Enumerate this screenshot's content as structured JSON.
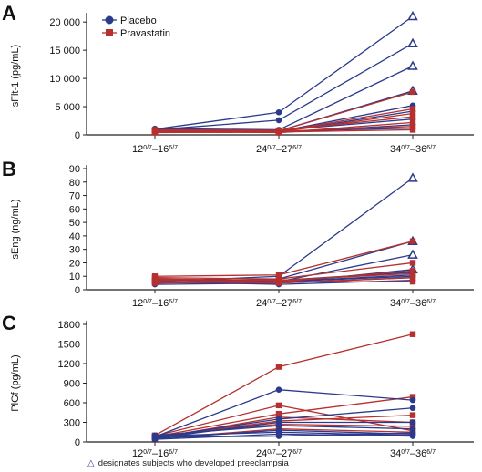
{
  "figure": {
    "footnote": "designates subjects who developed preeclampsia",
    "footnote_icon": "triangle-outline-icon",
    "colors": {
      "placebo": "#2b3a8c",
      "pravastatin": "#b5302e",
      "axis": "#222222"
    }
  },
  "chart_data": [
    {
      "panel": "A",
      "type": "line",
      "ylabel": "sFlt-1 (pg/mL)",
      "xlabel": "",
      "ylim": [
        0,
        21000
      ],
      "yticks": [
        0,
        5000,
        10000,
        15000,
        20000
      ],
      "ytick_labels": [
        "0",
        "5 000",
        "10 000",
        "15 000",
        "20 000"
      ],
      "legend": {
        "placement": "top-left",
        "entries": [
          {
            "label": "Placebo",
            "marker": "circle",
            "color": "#2b3a8c"
          },
          {
            "label": "Pravastatin",
            "marker": "square",
            "color": "#b5302e"
          }
        ]
      },
      "categories": [
        "12 0/7–16 6/7",
        "24 0/7–27 6/7",
        "34 0/7–36 6/7"
      ],
      "series": [
        {
          "group": "placebo",
          "values": [
            1000,
            4000,
            21000
          ],
          "preeclampsia": true
        },
        {
          "group": "placebo",
          "values": [
            900,
            2600,
            16200
          ],
          "preeclampsia": true
        },
        {
          "group": "placebo",
          "values": [
            1100,
            900,
            12200
          ],
          "preeclampsia": true
        },
        {
          "group": "placebo",
          "values": [
            800,
            700,
            7800
          ],
          "preeclampsia": true
        },
        {
          "group": "placebo",
          "values": [
            700,
            600,
            5200
          ]
        },
        {
          "group": "placebo",
          "values": [
            1000,
            500,
            4200
          ]
        },
        {
          "group": "placebo",
          "values": [
            600,
            800,
            2800
          ]
        },
        {
          "group": "placebo",
          "values": [
            900,
            400,
            1800
          ]
        },
        {
          "group": "placebo",
          "values": [
            500,
            600,
            1200
          ]
        },
        {
          "group": "pravastatin",
          "values": [
            800,
            700,
            7600
          ]
        },
        {
          "group": "pravastatin",
          "values": [
            700,
            600,
            4600
          ]
        },
        {
          "group": "pravastatin",
          "values": [
            600,
            500,
            3800
          ]
        },
        {
          "group": "pravastatin",
          "values": [
            900,
            800,
            3200
          ]
        },
        {
          "group": "pravastatin",
          "values": [
            500,
            400,
            2200
          ]
        },
        {
          "group": "pravastatin",
          "values": [
            700,
            600,
            1500
          ]
        },
        {
          "group": "pravastatin",
          "values": [
            400,
            500,
            900
          ]
        }
      ]
    },
    {
      "panel": "B",
      "type": "line",
      "ylabel": "sEng (ng/mL)",
      "xlabel": "",
      "ylim": [
        0,
        90
      ],
      "yticks": [
        0,
        10,
        20,
        30,
        40,
        50,
        60,
        70,
        80,
        90
      ],
      "ytick_labels": [
        "0",
        "10",
        "20",
        "30",
        "40",
        "50",
        "60",
        "70",
        "80",
        "90"
      ],
      "categories": [
        "12 0/7–16 6/7",
        "24 0/7–27 6/7",
        "34 0/7–36 6/7"
      ],
      "series": [
        {
          "group": "placebo",
          "values": [
            6,
            10,
            83
          ],
          "preeclampsia": true
        },
        {
          "group": "placebo",
          "values": [
            5,
            8,
            36
          ],
          "preeclampsia": true
        },
        {
          "group": "placebo",
          "values": [
            7,
            6,
            26
          ],
          "preeclampsia": true
        },
        {
          "group": "placebo",
          "values": [
            6,
            5,
            15
          ],
          "preeclampsia": true
        },
        {
          "group": "placebo",
          "values": [
            5,
            7,
            13
          ]
        },
        {
          "group": "placebo",
          "values": [
            8,
            6,
            11
          ]
        },
        {
          "group": "placebo",
          "values": [
            4,
            5,
            9
          ]
        },
        {
          "group": "placebo",
          "values": [
            6,
            4,
            7
          ]
        },
        {
          "group": "placebo",
          "values": [
            5,
            6,
            10
          ]
        },
        {
          "group": "pravastatin",
          "values": [
            10,
            11,
            36
          ]
        },
        {
          "group": "pravastatin",
          "values": [
            9,
            8,
            20
          ]
        },
        {
          "group": "pravastatin",
          "values": [
            7,
            6,
            14
          ]
        },
        {
          "group": "pravastatin",
          "values": [
            8,
            7,
            12
          ]
        },
        {
          "group": "pravastatin",
          "values": [
            6,
            5,
            9
          ]
        },
        {
          "group": "pravastatin",
          "values": [
            5,
            6,
            6
          ]
        }
      ]
    },
    {
      "panel": "C",
      "type": "line",
      "ylabel": "PlGf (pg/mL)",
      "xlabel": "",
      "ylim": [
        0,
        1800
      ],
      "yticks": [
        0,
        300,
        600,
        900,
        1200,
        1500,
        1800
      ],
      "ytick_labels": [
        "0",
        "300",
        "600",
        "900",
        "1200",
        "1500",
        "1800"
      ],
      "categories": [
        "12 0/7–16 6/7",
        "24 0/7–27 6/7",
        "34 0/7–36 6/7"
      ],
      "series": [
        {
          "group": "pravastatin",
          "values": [
            100,
            1150,
            1650
          ]
        },
        {
          "group": "pravastatin",
          "values": [
            90,
            560,
            170
          ]
        },
        {
          "group": "pravastatin",
          "values": [
            80,
            430,
            690
          ]
        },
        {
          "group": "pravastatin",
          "values": [
            70,
            320,
            410
          ]
        },
        {
          "group": "pravastatin",
          "values": [
            60,
            380,
            300
          ]
        },
        {
          "group": "pravastatin",
          "values": [
            90,
            270,
            240
          ]
        },
        {
          "group": "pravastatin",
          "values": [
            50,
            200,
            150
          ]
        },
        {
          "group": "placebo",
          "values": [
            80,
            800,
            640
          ]
        },
        {
          "group": "placebo",
          "values": [
            70,
            350,
            520
          ]
        },
        {
          "group": "placebo",
          "values": [
            60,
            300,
            300
          ]
        },
        {
          "group": "placebo",
          "values": [
            100,
            250,
            200
          ]
        },
        {
          "group": "placebo",
          "values": [
            50,
            180,
            120
          ]
        },
        {
          "group": "placebo",
          "values": [
            90,
            150,
            100
          ]
        },
        {
          "group": "placebo",
          "values": [
            40,
            120,
            90
          ]
        },
        {
          "group": "placebo",
          "values": [
            70,
            90,
            140
          ]
        }
      ]
    }
  ]
}
